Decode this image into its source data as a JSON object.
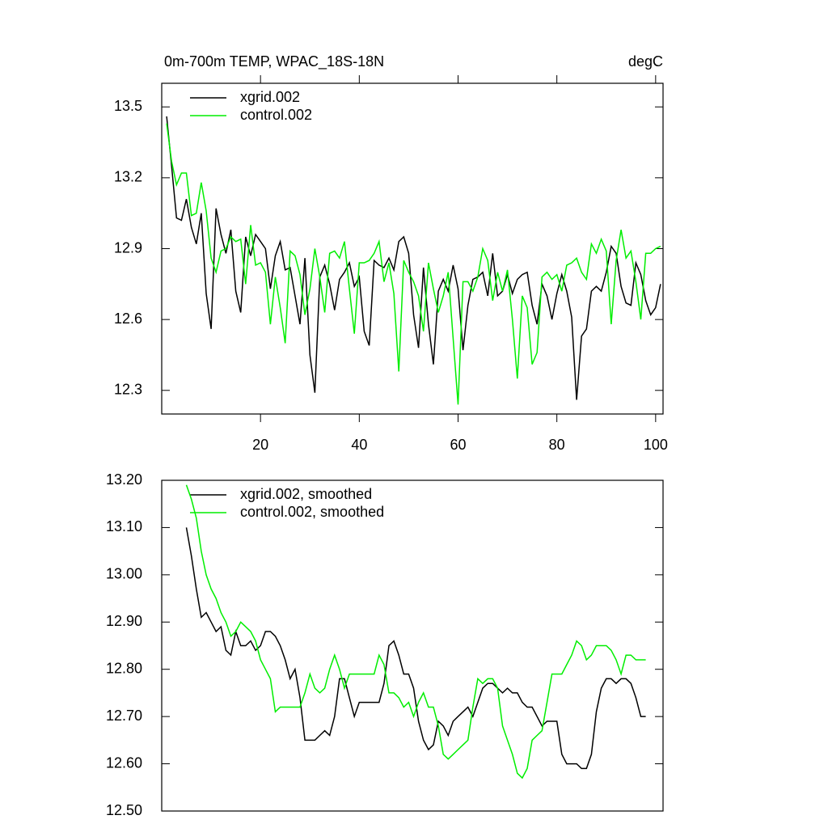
{
  "chart_data": [
    {
      "type": "line",
      "title": "0m-700m TEMP, WPAC_18S-18N",
      "units": "degC",
      "x": [
        1,
        2,
        3,
        4,
        5,
        6,
        7,
        8,
        9,
        10,
        11,
        12,
        13,
        14,
        15,
        16,
        17,
        18,
        19,
        20,
        21,
        22,
        23,
        24,
        25,
        26,
        27,
        28,
        29,
        30,
        31,
        32,
        33,
        34,
        35,
        36,
        37,
        38,
        39,
        40,
        41,
        42,
        43,
        44,
        45,
        46,
        47,
        48,
        49,
        50,
        51,
        52,
        53,
        54,
        55,
        56,
        57,
        58,
        59,
        60,
        61,
        62,
        63,
        64,
        65,
        66,
        67,
        68,
        69,
        70,
        71,
        72,
        73,
        74,
        75,
        76,
        77,
        78,
        79,
        80,
        81,
        82,
        83,
        84,
        85,
        86,
        87,
        88,
        89,
        90,
        91,
        92,
        93,
        94,
        95,
        96,
        97,
        98,
        99,
        100,
        101
      ],
      "xlim": [
        0,
        101.5
      ],
      "ylim": [
        12.2,
        13.6
      ],
      "xticks": [
        20,
        40,
        60,
        80,
        100
      ],
      "yticks": [
        12.3,
        12.6,
        12.9,
        13.2,
        13.5
      ],
      "series": [
        {
          "name": "xgrid.002",
          "color": "#000000",
          "values": [
            13.46,
            13.25,
            13.03,
            13.02,
            13.11,
            12.99,
            12.92,
            13.05,
            12.71,
            12.56,
            13.07,
            12.96,
            12.88,
            12.98,
            12.72,
            12.63,
            12.95,
            12.87,
            12.96,
            12.93,
            12.9,
            12.73,
            12.87,
            12.93,
            12.81,
            12.82,
            12.7,
            12.58,
            12.86,
            12.45,
            12.29,
            12.78,
            12.83,
            12.75,
            12.64,
            12.77,
            12.8,
            12.84,
            12.74,
            12.78,
            12.55,
            12.49,
            12.85,
            12.83,
            12.82,
            12.86,
            12.81,
            12.93,
            12.95,
            12.88,
            12.62,
            12.48,
            12.82,
            12.58,
            12.41,
            12.72,
            12.77,
            12.72,
            12.83,
            12.73,
            12.47,
            12.66,
            12.77,
            12.78,
            12.8,
            12.7,
            12.88,
            12.7,
            12.72,
            12.79,
            12.71,
            12.77,
            12.79,
            12.8,
            12.66,
            12.58,
            12.75,
            12.7,
            12.6,
            12.71,
            12.79,
            12.72,
            12.61,
            12.26,
            12.53,
            12.56,
            12.72,
            12.74,
            12.72,
            12.8,
            12.91,
            12.88,
            12.74,
            12.67,
            12.66,
            12.84,
            12.79,
            12.68,
            12.62,
            12.65,
            12.75
          ]
        },
        {
          "name": "control.002",
          "color": "#00ee00",
          "values": [
            13.43,
            13.27,
            13.17,
            13.22,
            13.22,
            13.04,
            13.05,
            13.18,
            13.06,
            12.86,
            12.8,
            12.89,
            12.9,
            12.95,
            12.93,
            12.94,
            12.75,
            13.0,
            12.83,
            12.84,
            12.8,
            12.58,
            12.78,
            12.65,
            12.5,
            12.89,
            12.87,
            12.79,
            12.62,
            12.73,
            12.9,
            12.78,
            12.63,
            12.88,
            12.89,
            12.86,
            12.93,
            12.73,
            12.54,
            12.84,
            12.84,
            12.85,
            12.88,
            12.93,
            12.76,
            12.84,
            12.71,
            12.38,
            12.85,
            12.8,
            12.76,
            12.7,
            12.55,
            12.84,
            12.73,
            12.63,
            12.7,
            12.8,
            12.52,
            12.24,
            12.76,
            12.76,
            12.72,
            12.78,
            12.9,
            12.85,
            12.68,
            12.8,
            12.72,
            12.81,
            12.6,
            12.35,
            12.7,
            12.65,
            12.41,
            12.46,
            12.78,
            12.8,
            12.77,
            12.79,
            12.72,
            12.83,
            12.84,
            12.86,
            12.8,
            12.77,
            12.92,
            12.88,
            12.94,
            12.89,
            12.58,
            12.85,
            12.98,
            12.86,
            12.89,
            12.76,
            12.6,
            12.88,
            12.88,
            12.9,
            12.91
          ]
        }
      ]
    },
    {
      "type": "line",
      "x": [
        5,
        6,
        7,
        8,
        9,
        10,
        11,
        12,
        13,
        14,
        15,
        16,
        17,
        18,
        19,
        20,
        21,
        22,
        23,
        24,
        25,
        26,
        27,
        28,
        29,
        30,
        31,
        32,
        33,
        34,
        35,
        36,
        37,
        38,
        39,
        40,
        41,
        42,
        43,
        44,
        45,
        46,
        47,
        48,
        49,
        50,
        51,
        52,
        53,
        54,
        55,
        56,
        57,
        58,
        59,
        60,
        61,
        62,
        63,
        64,
        65,
        66,
        67,
        68,
        69,
        70,
        71,
        72,
        73,
        74,
        75,
        76,
        77,
        78,
        79,
        80,
        81,
        82,
        83,
        84,
        85,
        86,
        87,
        88,
        89,
        90,
        91,
        92,
        93,
        94,
        95,
        96,
        97,
        98
      ],
      "xlim": [
        0,
        101.5
      ],
      "ylim": [
        12.5,
        13.2
      ],
      "yticks": [
        {
          "value": 12.5,
          "label": "12.50"
        },
        {
          "value": 12.6,
          "label": "12.60"
        },
        {
          "value": 12.7,
          "label": "12.70"
        },
        {
          "value": 12.8,
          "label": "12.80"
        },
        {
          "value": 12.9,
          "label": "12.90"
        },
        {
          "value": 13.0,
          "label": "13.00"
        },
        {
          "value": 13.1,
          "label": "13.10"
        },
        {
          "value": 13.2,
          "label": "13.20"
        }
      ],
      "series": [
        {
          "name": "xgrid.002, smoothed",
          "color": "#000000",
          "values": [
            13.1,
            13.04,
            12.97,
            12.91,
            12.92,
            12.9,
            12.88,
            12.89,
            12.84,
            12.83,
            12.88,
            12.85,
            12.85,
            12.86,
            12.84,
            12.85,
            12.88,
            12.88,
            12.87,
            12.85,
            12.82,
            12.78,
            12.8,
            12.74,
            12.65,
            12.65,
            12.65,
            12.66,
            12.67,
            12.66,
            12.7,
            12.78,
            12.78,
            12.74,
            12.7,
            12.73,
            12.73,
            12.73,
            12.73,
            12.73,
            12.77,
            12.85,
            12.86,
            12.83,
            12.79,
            12.79,
            12.76,
            12.69,
            12.65,
            12.63,
            12.64,
            12.69,
            12.68,
            12.66,
            12.69,
            12.7,
            12.71,
            12.72,
            12.7,
            12.73,
            12.76,
            12.77,
            12.77,
            12.76,
            12.75,
            12.76,
            12.75,
            12.75,
            12.73,
            12.72,
            12.72,
            12.7,
            12.68,
            12.69,
            12.69,
            12.69,
            12.62,
            12.6,
            12.6,
            12.6,
            12.59,
            12.59,
            12.62,
            12.71,
            12.76,
            12.78,
            12.78,
            12.77,
            12.78,
            12.78,
            12.77,
            12.74,
            12.7,
            12.7
          ]
        },
        {
          "name": "control.002, smoothed",
          "color": "#00ee00",
          "values": [
            13.19,
            13.16,
            13.12,
            13.05,
            13.0,
            12.97,
            12.95,
            12.92,
            12.9,
            12.87,
            12.88,
            12.9,
            12.89,
            12.88,
            12.86,
            12.82,
            12.8,
            12.78,
            12.71,
            12.72,
            12.72,
            12.72,
            12.72,
            12.72,
            12.75,
            12.79,
            12.76,
            12.75,
            12.76,
            12.8,
            12.83,
            12.8,
            12.76,
            12.79,
            12.79,
            12.79,
            12.79,
            12.79,
            12.79,
            12.83,
            12.81,
            12.75,
            12.75,
            12.74,
            12.72,
            12.73,
            12.7,
            12.73,
            12.75,
            12.72,
            12.72,
            12.68,
            12.62,
            12.61,
            12.62,
            12.63,
            12.64,
            12.65,
            12.72,
            12.78,
            12.77,
            12.78,
            12.78,
            12.76,
            12.68,
            12.65,
            12.62,
            12.58,
            12.57,
            12.59,
            12.65,
            12.66,
            12.67,
            12.73,
            12.79,
            12.79,
            12.79,
            12.81,
            12.83,
            12.86,
            12.85,
            12.82,
            12.83,
            12.85,
            12.85,
            12.85,
            12.84,
            12.82,
            12.79,
            12.83,
            12.83,
            12.82,
            12.82,
            12.82
          ]
        }
      ]
    }
  ]
}
